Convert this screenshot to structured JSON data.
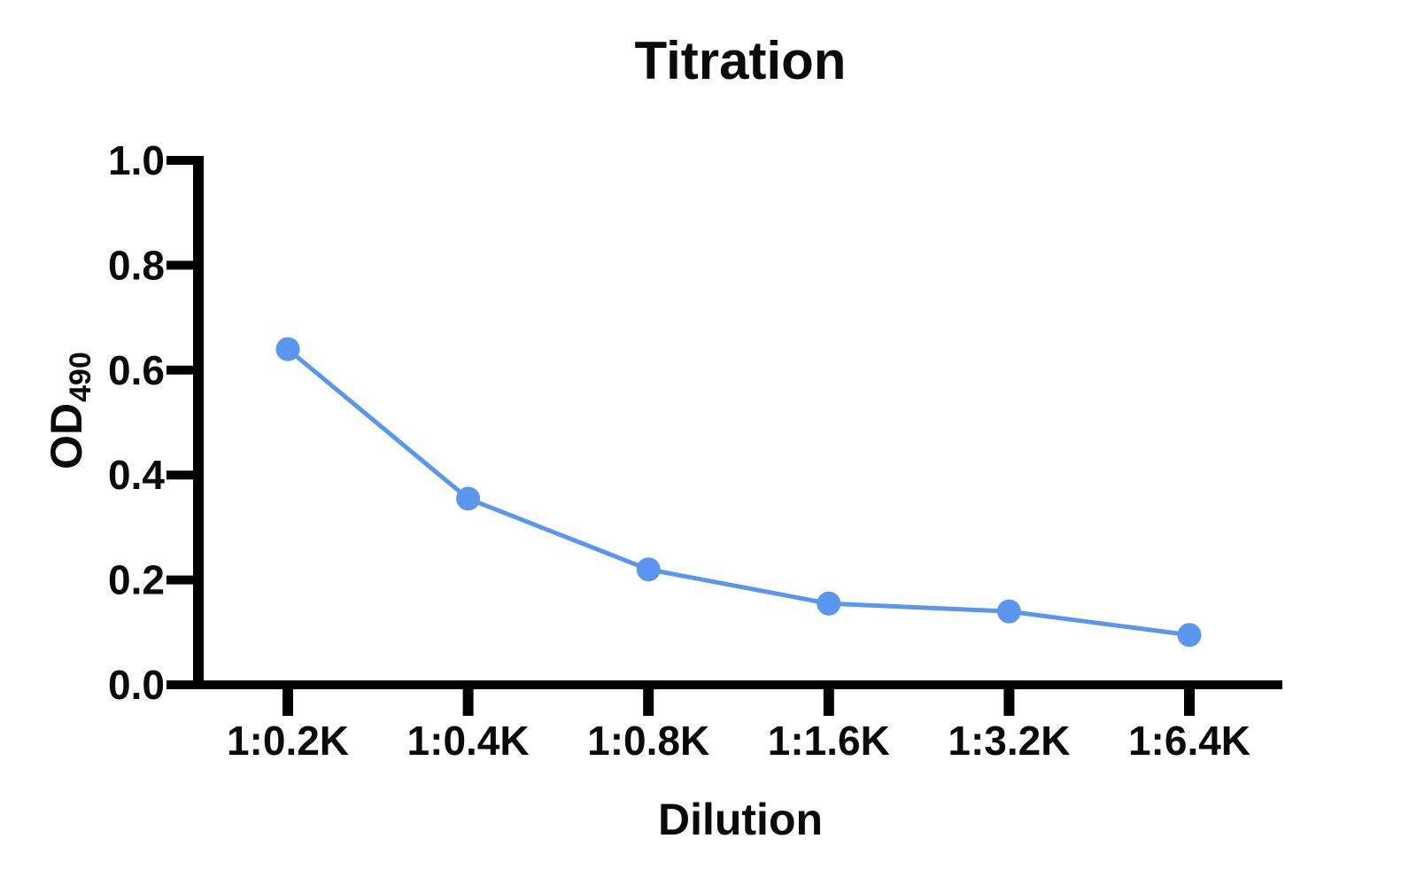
{
  "page": {
    "background_color": "#ffffff"
  },
  "chart_data": {
    "type": "line",
    "title": "Titration",
    "xlabel": "Dilution",
    "ylabel_base": "OD",
    "ylabel_sub": "490",
    "categories": [
      "1:0.2K",
      "1:0.4K",
      "1:0.8K",
      "1:1.6K",
      "1:3.2K",
      "1:6.4K"
    ],
    "series": [
      {
        "name": "OD490",
        "color": "#5A96EE",
        "marker": "circle",
        "values": [
          0.64,
          0.355,
          0.22,
          0.155,
          0.14,
          0.095
        ]
      }
    ],
    "ylim": [
      0.0,
      1.0
    ],
    "yticks": [
      "0.0",
      "0.2",
      "0.4",
      "0.6",
      "0.8",
      "1.0"
    ],
    "grid": false,
    "legend_position": "none",
    "axis_color": "#000000"
  }
}
